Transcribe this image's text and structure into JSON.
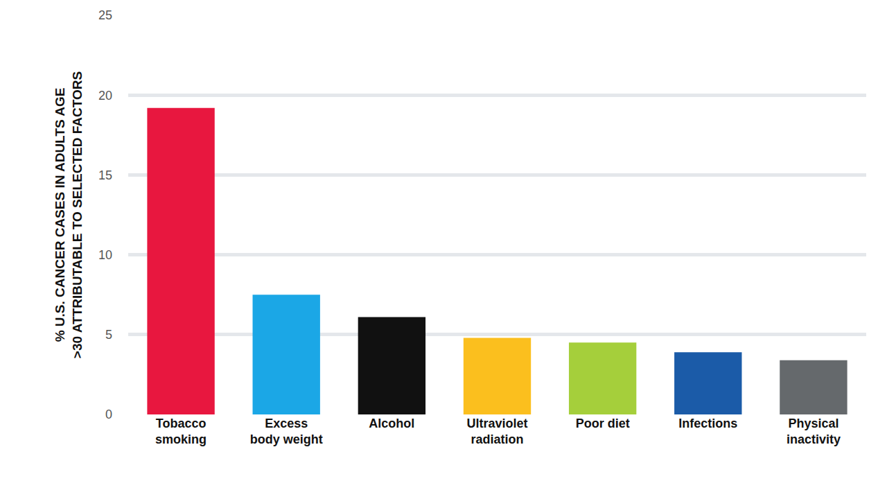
{
  "chart_data": {
    "type": "bar",
    "y_label": "% U.S. CANCER CASES IN ADULTS AGE >30 ATTRIBUTABLE TO SELECTED FACTORS",
    "categories": [
      "Tobacco smoking",
      "Excess body weight",
      "Alcohol",
      "Ultraviolet radiation",
      "Poor diet",
      "Infections",
      "Physical inactivity"
    ],
    "values": [
      19.2,
      7.5,
      6.1,
      4.8,
      4.5,
      3.9,
      3.4
    ],
    "colors": [
      "#e8173f",
      "#1ba7e6",
      "#111111",
      "#fbbf1e",
      "#a5cf3b",
      "#1b5ba8",
      "#65696c"
    ],
    "ylim": [
      0,
      25
    ],
    "yticks": [
      0,
      5,
      10,
      15,
      20,
      25
    ],
    "grid": true
  }
}
